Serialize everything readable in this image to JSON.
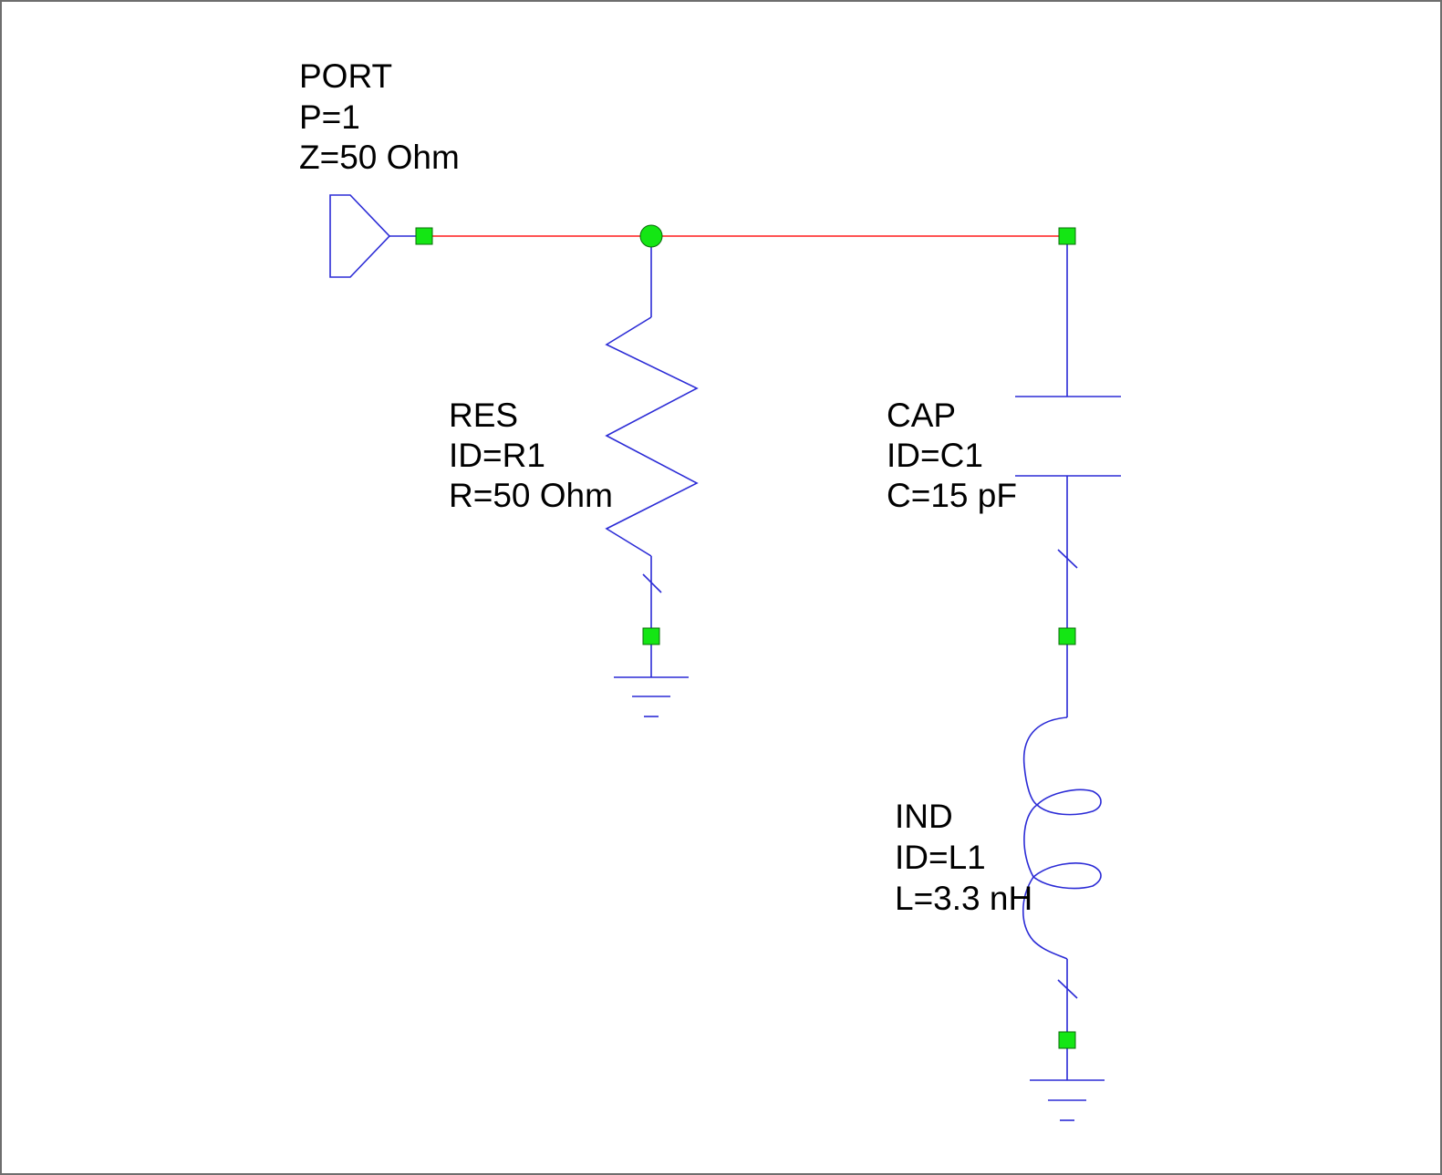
{
  "components": {
    "port": {
      "type": "PORT",
      "param1": "P=1",
      "param2": "Z=50 Ohm"
    },
    "resistor": {
      "type": "RES",
      "id": "ID=R1",
      "value": "R=50 Ohm"
    },
    "capacitor": {
      "type": "CAP",
      "id": "ID=C1",
      "value": "C=15 pF"
    },
    "inductor": {
      "type": "IND",
      "id": "ID=L1",
      "value": "L=3.3 nH"
    }
  },
  "colors": {
    "wire_highlight": "#ff1a1a",
    "component_lines": "#2b2bd6",
    "node_fill": "#14e614",
    "background": "#ffffff"
  }
}
